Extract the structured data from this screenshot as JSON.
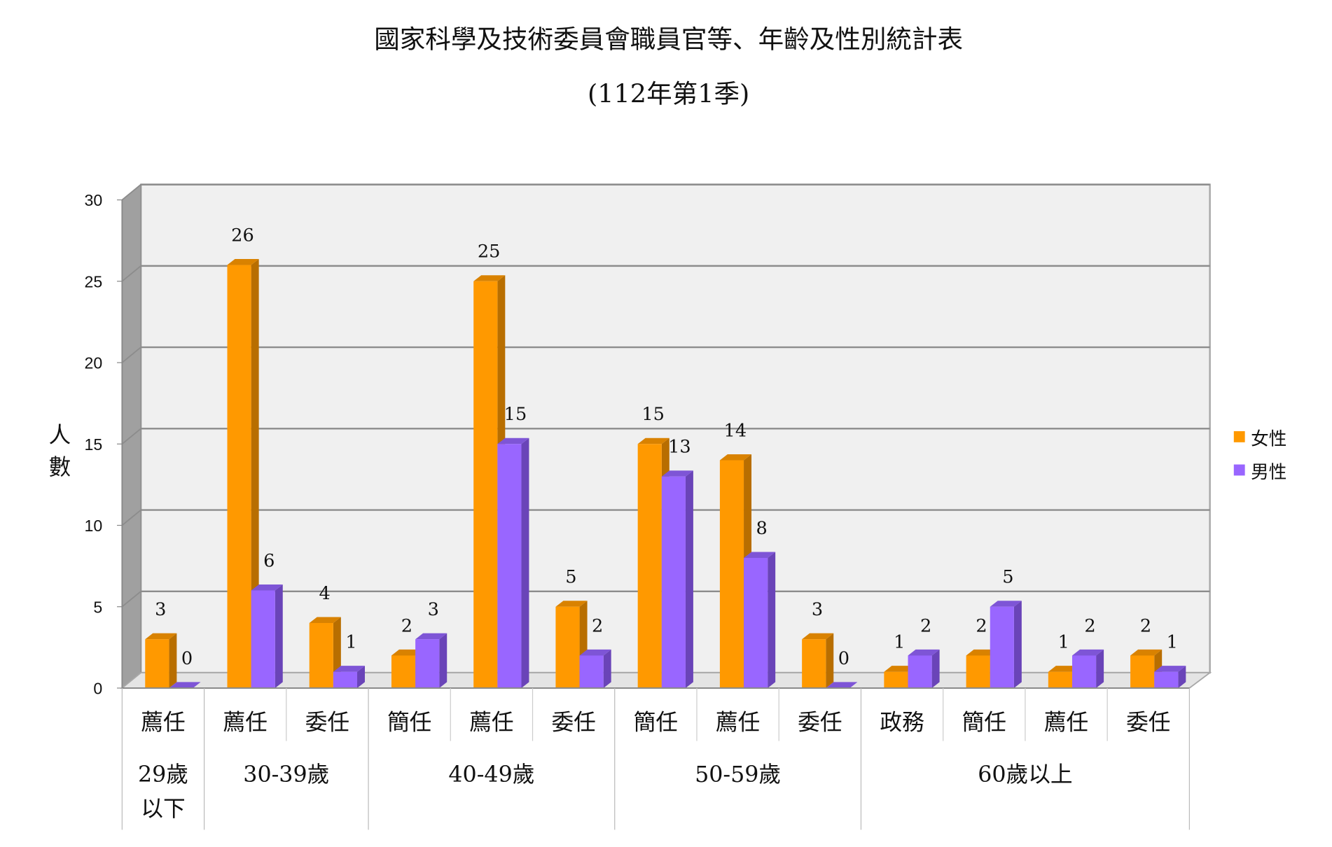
{
  "chart_data": {
    "type": "bar",
    "title": "國家科學及技術委員會職員官等、年齡及性別統計表",
    "subtitle": "(112年第1季)",
    "ylabel": [
      "人",
      "數"
    ],
    "ylim": [
      0,
      30
    ],
    "yticks": [
      0,
      5,
      10,
      15,
      20,
      25,
      30
    ],
    "grid": true,
    "legend_position": "right",
    "categories": [
      "薦任",
      "薦任",
      "委任",
      "簡任",
      "薦任",
      "委任",
      "簡任",
      "薦任",
      "委任",
      "政務",
      "簡任",
      "薦任",
      "委任"
    ],
    "groups": [
      {
        "label": [
          "29歲",
          "以下"
        ],
        "count": 1
      },
      {
        "label": [
          "30-39歲"
        ],
        "count": 2
      },
      {
        "label": [
          "40-49歲"
        ],
        "count": 3
      },
      {
        "label": [
          "50-59歲"
        ],
        "count": 3
      },
      {
        "label": [
          "60歲以上"
        ],
        "count": 4
      }
    ],
    "series": [
      {
        "name": "女性",
        "color": "#FF9900",
        "side": "#B86E00",
        "top": "#D98200",
        "values": [
          3,
          26,
          4,
          2,
          25,
          5,
          15,
          14,
          3,
          1,
          2,
          1,
          2
        ]
      },
      {
        "name": "男性",
        "color": "#9966FF",
        "side": "#6A44B8",
        "top": "#7E55D6",
        "values": [
          0,
          6,
          1,
          3,
          15,
          2,
          13,
          8,
          0,
          2,
          5,
          2,
          1
        ]
      }
    ]
  }
}
